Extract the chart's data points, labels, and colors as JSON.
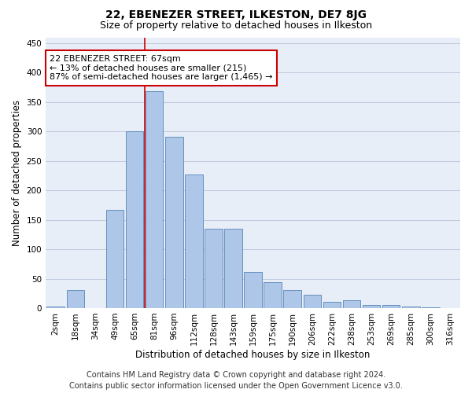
{
  "title": "22, EBENEZER STREET, ILKESTON, DE7 8JG",
  "subtitle": "Size of property relative to detached houses in Ilkeston",
  "xlabel": "Distribution of detached houses by size in Ilkeston",
  "ylabel": "Number of detached properties",
  "categories": [
    "2sqm",
    "18sqm",
    "34sqm",
    "49sqm",
    "65sqm",
    "81sqm",
    "96sqm",
    "112sqm",
    "128sqm",
    "143sqm",
    "159sqm",
    "175sqm",
    "190sqm",
    "206sqm",
    "222sqm",
    "238sqm",
    "253sqm",
    "269sqm",
    "285sqm",
    "300sqm",
    "316sqm"
  ],
  "values": [
    3,
    30,
    0,
    167,
    300,
    369,
    291,
    227,
    135,
    135,
    62,
    44,
    30,
    23,
    11,
    13,
    5,
    5,
    2,
    1,
    0
  ],
  "bar_color": "#aec6e8",
  "bar_edge_color": "#5585b5",
  "vline_color": "#cc0000",
  "vline_x": 4.5,
  "annotation_text": "22 EBENEZER STREET: 67sqm\n← 13% of detached houses are smaller (215)\n87% of semi-detached houses are larger (1,465) →",
  "annotation_box_color": "white",
  "annotation_box_edge_color": "#cc0000",
  "ylim": [
    0,
    460
  ],
  "yticks": [
    0,
    50,
    100,
    150,
    200,
    250,
    300,
    350,
    400,
    450
  ],
  "footer_line1": "Contains HM Land Registry data © Crown copyright and database right 2024.",
  "footer_line2": "Contains public sector information licensed under the Open Government Licence v3.0.",
  "background_color": "#e8eef8",
  "grid_color": "#b8c4d8",
  "title_fontsize": 10,
  "subtitle_fontsize": 9,
  "axis_label_fontsize": 8.5,
  "tick_fontsize": 7.5,
  "annotation_fontsize": 8,
  "footer_fontsize": 7
}
